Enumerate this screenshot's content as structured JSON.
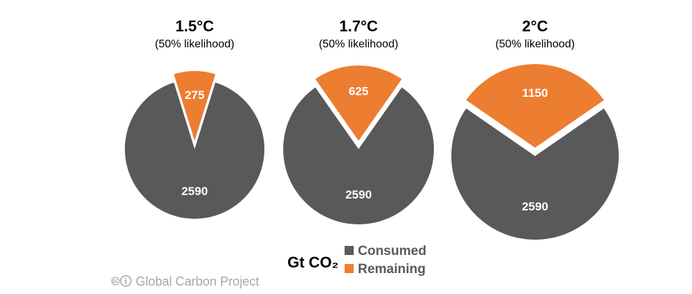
{
  "chart_data": {
    "type": "pie",
    "unit_label": "Gt CO₂",
    "legend": [
      {
        "name": "Consumed",
        "color": "#595959"
      },
      {
        "name": "Remaining",
        "color": "#ed7d31"
      }
    ],
    "charts": [
      {
        "title": "1.5°C",
        "subtitle": "(50% likelihood)",
        "consumed": 2590,
        "remaining": 275
      },
      {
        "title": "1.7°C",
        "subtitle": "(50% likelihood)",
        "consumed": 2590,
        "remaining": 625
      },
      {
        "title": "2°C",
        "subtitle": "(50% likelihood)",
        "consumed": 2590,
        "remaining": 1150
      }
    ]
  },
  "credit": "Global Carbon Project"
}
